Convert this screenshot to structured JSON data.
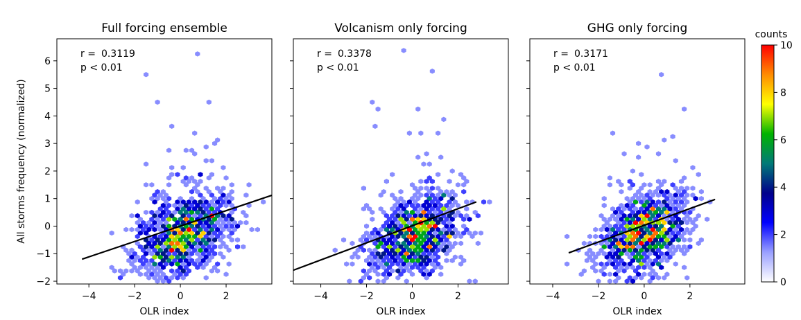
{
  "figure": {
    "ylabel": "All storms frequency (normalized)",
    "colorbar": {
      "label": "counts",
      "min": 0,
      "max": 10,
      "ticks": [
        0,
        2,
        4,
        6,
        8,
        10
      ],
      "colors": [
        "#ffffff",
        "#9aa0ff",
        "#0000ff",
        "#00008b",
        "#007a78",
        "#00b300",
        "#ffff00",
        "#ff8c00",
        "#ff0000"
      ]
    }
  },
  "chart_data": [
    {
      "type": "hexbin-scatter",
      "title": "Full forcing ensemble",
      "xlabel": "OLR index",
      "ylabel": "All storms frequency (normalized)",
      "xlim": [
        -5.4,
        4.0
      ],
      "ylim": [
        -2.1,
        6.8
      ],
      "xticks": [
        -4,
        -2,
        0,
        2
      ],
      "yticks": [
        -2,
        -1,
        0,
        1,
        2,
        3,
        4,
        5,
        6
      ],
      "annotation": {
        "r_label": "r =",
        "r_value": "0.3119",
        "p_text": "p < 0.01"
      },
      "regression": {
        "x": [
          -4.3,
          4.0
        ],
        "y": [
          -1.2,
          1.12
        ]
      },
      "center": [
        0.2,
        -0.3
      ],
      "spread": [
        1.1,
        0.75
      ]
    },
    {
      "type": "hexbin-scatter",
      "title": "Volcanism only forcing",
      "xlabel": "OLR index",
      "ylabel": "",
      "xlim": [
        -5.2,
        4.2
      ],
      "ylim": [
        -2.1,
        6.8
      ],
      "xticks": [
        -4,
        -2,
        0,
        2
      ],
      "yticks": [
        -2,
        -1,
        0,
        1,
        2,
        3,
        4,
        5,
        6
      ],
      "annotation": {
        "r_label": "r =",
        "r_value": "0.3378",
        "p_text": "p < 0.01"
      },
      "regression": {
        "x": [
          -5.2,
          2.8
        ],
        "y": [
          -1.6,
          0.88
        ]
      },
      "center": [
        0.1,
        -0.35
      ],
      "spread": [
        1.1,
        0.75
      ]
    },
    {
      "type": "hexbin-scatter",
      "title": "GHG only forcing",
      "xlabel": "OLR index",
      "ylabel": "",
      "xlim": [
        -5.0,
        4.4
      ],
      "ylim": [
        -2.1,
        6.8
      ],
      "xticks": [
        -4,
        -2,
        0,
        2
      ],
      "yticks": [
        -2,
        -1,
        0,
        1,
        2,
        3,
        4,
        5,
        6
      ],
      "annotation": {
        "r_label": "r =",
        "r_value": "0.3171",
        "p_text": "p < 0.01"
      },
      "regression": {
        "x": [
          -3.3,
          3.1
        ],
        "y": [
          -0.97,
          0.97
        ]
      },
      "center": [
        0.0,
        -0.3
      ],
      "spread": [
        1.0,
        0.7
      ]
    }
  ]
}
